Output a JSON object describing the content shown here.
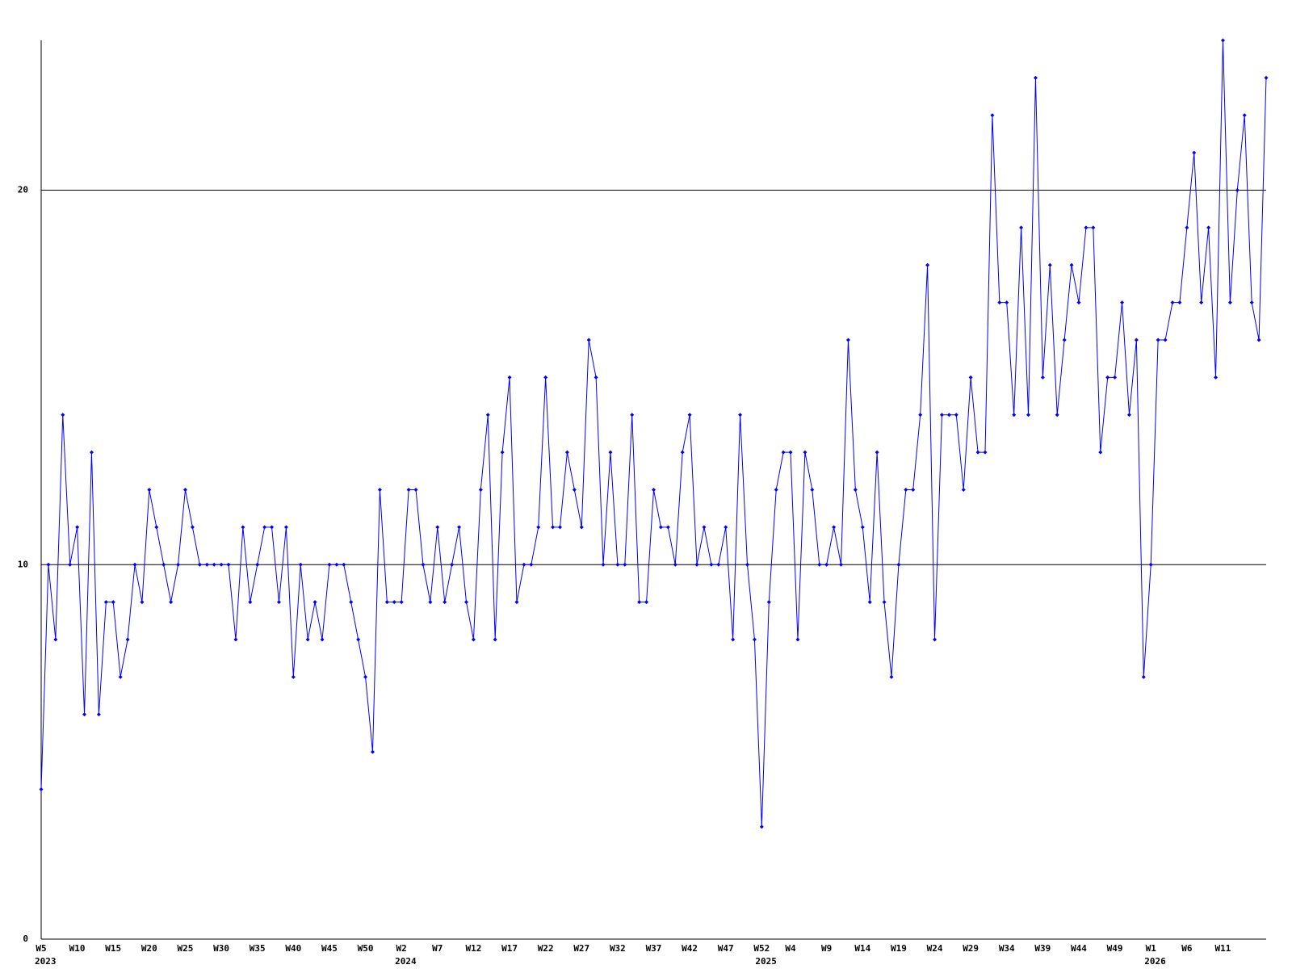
{
  "chart_data": {
    "type": "line",
    "categories": [
      "W5",
      null,
      null,
      null,
      null,
      "W10",
      null,
      null,
      null,
      null,
      "W15",
      null,
      null,
      null,
      null,
      "W20",
      null,
      null,
      null,
      null,
      "W25",
      null,
      null,
      null,
      null,
      "W30",
      null,
      null,
      null,
      null,
      "W35",
      null,
      null,
      null,
      null,
      "W40",
      null,
      null,
      null,
      null,
      "W45",
      null,
      null,
      null,
      null,
      "W50",
      null,
      null,
      null,
      null,
      "W2",
      null,
      null,
      null,
      null,
      "W7",
      null,
      null,
      null,
      null,
      "W12",
      null,
      null,
      null,
      null,
      "W17",
      null,
      null,
      null,
      null,
      "W22",
      null,
      null,
      null,
      null,
      "W27",
      null,
      null,
      null,
      null,
      "W32",
      null,
      null,
      null,
      null,
      "W37",
      null,
      null,
      null,
      null,
      "W42",
      null,
      null,
      null,
      null,
      "W47",
      null,
      null,
      null,
      null,
      "W52",
      null,
      null,
      null,
      "W4",
      null,
      null,
      null,
      null,
      "W9",
      null,
      null,
      null,
      null,
      "W14",
      null,
      null,
      null,
      null,
      "W19",
      null,
      null,
      null,
      null,
      "W24",
      null,
      null,
      null,
      null,
      "W29",
      null,
      null,
      null,
      null,
      "W34",
      null,
      null,
      null,
      null,
      "W39",
      null,
      null,
      null,
      null,
      "W44",
      null,
      null,
      null,
      null,
      "W49",
      null,
      null,
      null,
      null,
      "W1",
      null,
      null,
      null,
      null,
      "W6",
      null,
      null,
      null,
      null,
      "W11",
      null,
      null,
      null,
      null,
      null,
      null
    ],
    "years": [
      "2023",
      null,
      null,
      null,
      null,
      null,
      null,
      null,
      null,
      null,
      null,
      null,
      null,
      null,
      null,
      null,
      null,
      null,
      null,
      null,
      null,
      null,
      null,
      null,
      null,
      null,
      null,
      null,
      null,
      null,
      null,
      null,
      null,
      null,
      null,
      null,
      null,
      null,
      null,
      null,
      null,
      null,
      null,
      null,
      null,
      null,
      null,
      null,
      null,
      null,
      "2024",
      null,
      null,
      null,
      null,
      null,
      null,
      null,
      null,
      null,
      null,
      null,
      null,
      null,
      null,
      null,
      null,
      null,
      null,
      null,
      null,
      null,
      null,
      null,
      null,
      null,
      null,
      null,
      null,
      null,
      null,
      null,
      null,
      null,
      null,
      null,
      null,
      null,
      null,
      null,
      null,
      null,
      null,
      null,
      null,
      null,
      null,
      null,
      null,
      null,
      "2025",
      null,
      null,
      null,
      null,
      null,
      null,
      null,
      null,
      null,
      null,
      null,
      null,
      null,
      null,
      null,
      null,
      null,
      null,
      null,
      null,
      null,
      null,
      null,
      null,
      null,
      null,
      null,
      null,
      null,
      null,
      null,
      null,
      null,
      null,
      null,
      null,
      null,
      null,
      null,
      null,
      null,
      null,
      null,
      null,
      null,
      null,
      null,
      null,
      null,
      null,
      null,
      null,
      null,
      "2026",
      null,
      null,
      null,
      null,
      null,
      null,
      null,
      null,
      null,
      null,
      null,
      null,
      null,
      null,
      null,
      null
    ],
    "values": [
      4,
      10,
      8,
      14,
      10,
      11,
      6,
      13,
      6,
      9,
      9,
      7,
      8,
      10,
      9,
      12,
      11,
      10,
      9,
      10,
      12,
      11,
      10,
      10,
      10,
      10,
      10,
      8,
      11,
      9,
      10,
      11,
      11,
      9,
      11,
      7,
      10,
      8,
      9,
      8,
      10,
      10,
      10,
      9,
      8,
      7,
      5,
      12,
      9,
      9,
      9,
      12,
      12,
      10,
      9,
      11,
      9,
      10,
      11,
      9,
      8,
      12,
      14,
      8,
      13,
      15,
      9,
      10,
      10,
      11,
      15,
      11,
      11,
      13,
      12,
      11,
      16,
      15,
      10,
      13,
      10,
      10,
      14,
      9,
      9,
      12,
      11,
      11,
      10,
      13,
      14,
      10,
      11,
      10,
      10,
      11,
      8,
      14,
      10,
      8,
      3,
      9,
      12,
      13,
      13,
      8,
      13,
      12,
      10,
      10,
      11,
      10,
      16,
      12,
      11,
      9,
      13,
      9,
      7,
      10,
      12,
      12,
      14,
      18,
      8,
      14,
      14,
      14,
      12,
      15,
      13,
      13,
      22,
      17,
      17,
      14,
      19,
      14,
      23,
      15,
      18,
      14,
      16,
      18,
      17,
      19,
      19,
      13,
      15,
      15,
      17,
      14,
      16,
      7,
      10,
      16,
      16,
      17,
      17,
      19,
      21,
      17,
      19,
      15,
      24,
      17,
      20,
      22,
      17,
      16,
      23
    ],
    "color": "#0000ff",
    "ylim": [
      0,
      24
    ],
    "yticks": [
      0,
      10,
      20
    ],
    "grid": true
  }
}
